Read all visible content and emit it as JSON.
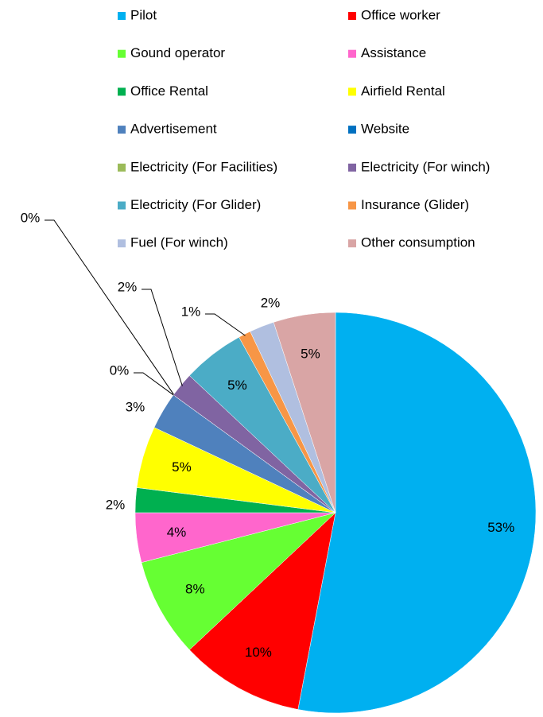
{
  "chart_data": {
    "type": "pie",
    "categories": [
      "Pilot",
      "Office worker",
      "Gound operator",
      "Assistance",
      "Office Rental",
      "Airfield Rental",
      "Advertisement",
      "Website",
      "Electricity (For Facilities)",
      "Electricity (For winch)",
      "Electricity (For Glider)",
      "Insurance (Glider)",
      "Fuel (For winch)",
      "Other consumption"
    ],
    "values": [
      53,
      10,
      8,
      4,
      2,
      5,
      3,
      0,
      0,
      2,
      5,
      1,
      2,
      5
    ],
    "value_labels": [
      "53%",
      "10%",
      "8%",
      "4%",
      "2%",
      "5%",
      "3%",
      "0%",
      "0%",
      "2%",
      "5%",
      "1%",
      "2%",
      "5%"
    ],
    "colors": [
      "#00b0f0",
      "#ff0000",
      "#66ff33",
      "#ff66cc",
      "#00b050",
      "#ffff00",
      "#4f81bd",
      "#0070c0",
      "#9bbb59",
      "#8064a2",
      "#4bacc6",
      "#f79646",
      "#b0bfe0",
      "#d9a5a5"
    ],
    "legend": "top"
  }
}
